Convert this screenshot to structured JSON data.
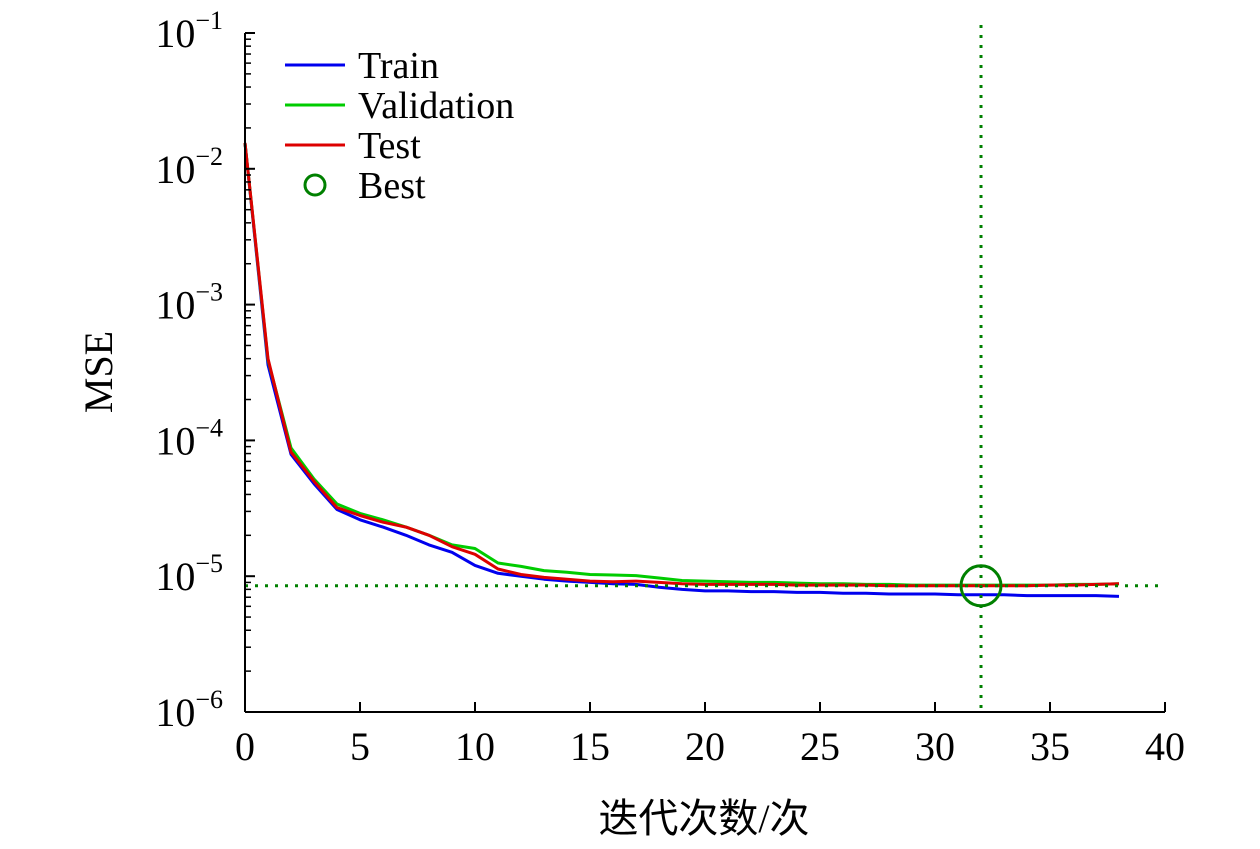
{
  "chart_data": {
    "type": "line",
    "title": "",
    "xlabel": "迭代次数/次",
    "ylabel": "MSE",
    "xlim": [
      0,
      40
    ],
    "ylim": [
      1e-06,
      0.1
    ],
    "yscale": "log",
    "grid": false,
    "legend_position": "top-left",
    "x_ticks": [
      0,
      5,
      10,
      15,
      20,
      25,
      30,
      35,
      40
    ],
    "x_tick_labels": [
      "0",
      "5",
      "10",
      "15",
      "20",
      "25",
      "30",
      "35",
      "40"
    ],
    "y_ticks": [
      {
        "value": 1e-06,
        "base": "10",
        "exp": "−6"
      },
      {
        "value": 1e-05,
        "base": "10",
        "exp": "−5"
      },
      {
        "value": 0.0001,
        "base": "10",
        "exp": "−4"
      },
      {
        "value": 0.001,
        "base": "10",
        "exp": "−3"
      },
      {
        "value": 0.01,
        "base": "10",
        "exp": "−2"
      },
      {
        "value": 0.1,
        "base": "10",
        "exp": "−1"
      }
    ],
    "x": [
      0,
      1,
      2,
      3,
      4,
      5,
      6,
      7,
      8,
      9,
      10,
      11,
      12,
      13,
      14,
      15,
      16,
      17,
      18,
      19,
      20,
      21,
      22,
      23,
      24,
      25,
      26,
      27,
      28,
      29,
      30,
      31,
      32,
      33,
      34,
      35,
      36,
      37,
      38
    ],
    "series": [
      {
        "name": "Train",
        "color": "#0000ee",
        "values": [
          0.0155,
          0.00036,
          7.9e-05,
          4.8e-05,
          3.1e-05,
          2.6e-05,
          2.3e-05,
          2e-05,
          1.7e-05,
          1.5e-05,
          1.2e-05,
          1.05e-05,
          1e-05,
          9.5e-06,
          9.2e-06,
          9e-06,
          8.8e-06,
          8.7e-06,
          8.3e-06,
          8e-06,
          7.8e-06,
          7.8e-06,
          7.7e-06,
          7.7e-06,
          7.6e-06,
          7.6e-06,
          7.5e-06,
          7.5e-06,
          7.4e-06,
          7.4e-06,
          7.4e-06,
          7.3e-06,
          7.3e-06,
          7.3e-06,
          7.2e-06,
          7.2e-06,
          7.2e-06,
          7.2e-06,
          7.1e-06
        ]
      },
      {
        "name": "Validation",
        "color": "#00cc00",
        "values": [
          0.0155,
          0.00039,
          8.8e-05,
          5.2e-05,
          3.4e-05,
          2.9e-05,
          2.6e-05,
          2.3e-05,
          2e-05,
          1.7e-05,
          1.6e-05,
          1.25e-05,
          1.18e-05,
          1.1e-05,
          1.07e-05,
          1.03e-05,
          1.02e-05,
          1.01e-05,
          9.7e-06,
          9.3e-06,
          9.2e-06,
          9.1e-06,
          9e-06,
          9e-06,
          8.9e-06,
          8.8e-06,
          8.8e-06,
          8.7e-06,
          8.7e-06,
          8.6e-06,
          8.6e-06,
          8.6e-06,
          8.6e-06,
          8.6e-06,
          8.6e-06,
          8.6e-06,
          8.7e-06,
          8.7e-06,
          8.8e-06
        ]
      },
      {
        "name": "Test",
        "color": "#dd0000",
        "values": [
          0.0155,
          0.0004,
          8.2e-05,
          5e-05,
          3.2e-05,
          2.8e-05,
          2.5e-05,
          2.3e-05,
          2e-05,
          1.65e-05,
          1.45e-05,
          1.13e-05,
          1.03e-05,
          9.8e-06,
          9.5e-06,
          9.2e-06,
          9.1e-06,
          9.2e-06,
          9e-06,
          8.8e-06,
          8.7e-06,
          8.7e-06,
          8.7e-06,
          8.7e-06,
          8.6e-06,
          8.6e-06,
          8.6e-06,
          8.6e-06,
          8.5e-06,
          8.5e-06,
          8.5e-06,
          8.5e-06,
          8.5e-06,
          8.5e-06,
          8.5e-06,
          8.6e-06,
          8.6e-06,
          8.7e-06,
          8.8e-06
        ]
      }
    ],
    "best": {
      "name": "Best",
      "color": "#008000",
      "x": 32,
      "y": 8.5e-06
    },
    "legend": [
      {
        "label": "Train",
        "kind": "line",
        "color": "#0000ee"
      },
      {
        "label": "Validation",
        "kind": "line",
        "color": "#00cc00"
      },
      {
        "label": "Test",
        "kind": "line",
        "color": "#dd0000"
      },
      {
        "label": "Best",
        "kind": "circle",
        "color": "#008000"
      }
    ]
  }
}
